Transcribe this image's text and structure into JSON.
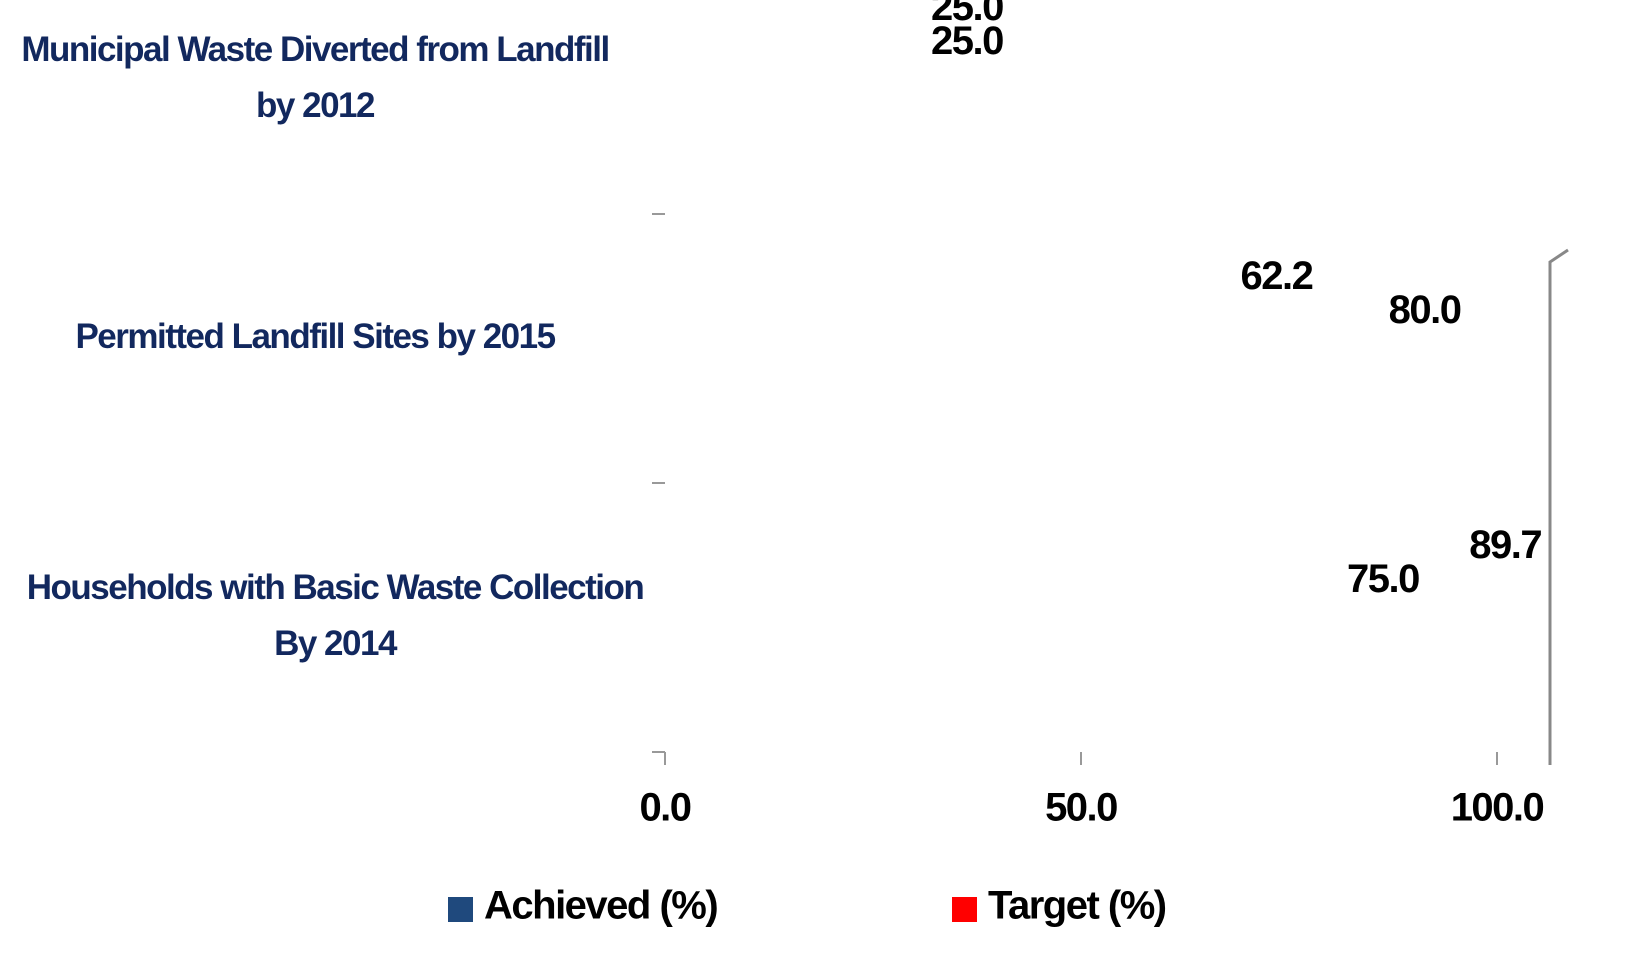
{
  "chart_data": {
    "type": "hbar",
    "categories": [
      "Municipal Waste Diverted from Landfill by 2012",
      "Permitted Landfill Sites by 2015",
      "Households with Basic Waste Collection By 2014"
    ],
    "series": [
      {
        "name": "Achieved (%)",
        "color": "#1f497d",
        "values": [
          25,
          62.2,
          89.7
        ],
        "value_labels": [
          "25.0",
          "62.2",
          "89.7"
        ]
      },
      {
        "name": "Target (%)",
        "color": "#ff0000",
        "values": [
          25,
          80,
          75
        ],
        "value_labels": [
          "25.0",
          "80.0",
          "75.0"
        ]
      }
    ],
    "xlim": [
      0,
      105
    ],
    "xticks": [
      {
        "value": 0,
        "label": "0.0"
      },
      {
        "value": 50,
        "label": "50.0"
      },
      {
        "value": 100,
        "label": "100.0"
      }
    ]
  }
}
